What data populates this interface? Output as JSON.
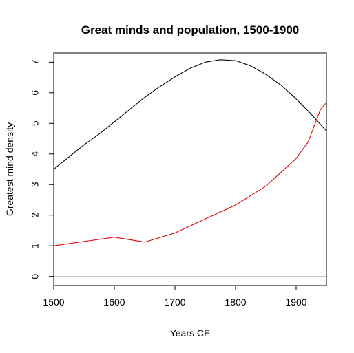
{
  "chart_data": {
    "type": "line",
    "title": "Great minds and population, 1500-1900",
    "xlabel": "Years CE",
    "ylabel": "Greatest mind density",
    "xlim": [
      1500,
      1950
    ],
    "ylim": [
      -0.3,
      7.3
    ],
    "x_ticks": [
      1500,
      1600,
      1700,
      1800,
      1900
    ],
    "y_ticks": [
      0,
      1,
      2,
      3,
      4,
      5,
      6,
      7
    ],
    "reference_line_y": 0,
    "reference_line_color": "#bebebe",
    "grid": false,
    "legend": "none",
    "series": [
      {
        "color": "#000000",
        "x": [
          1500,
          1525,
          1550,
          1575,
          1600,
          1625,
          1650,
          1675,
          1700,
          1725,
          1750,
          1775,
          1800,
          1825,
          1850,
          1875,
          1900,
          1925,
          1950
        ],
        "y": [
          3.5,
          3.9,
          4.3,
          4.65,
          5.05,
          5.45,
          5.85,
          6.2,
          6.52,
          6.8,
          7.0,
          7.08,
          7.05,
          6.88,
          6.6,
          6.25,
          5.8,
          5.3,
          4.75
        ]
      },
      {
        "color": "#df0000",
        "x": [
          1500,
          1600,
          1650,
          1700,
          1800,
          1850,
          1900,
          1920,
          1940,
          1950
        ],
        "y": [
          1.0,
          1.28,
          1.12,
          1.42,
          2.33,
          2.95,
          3.85,
          4.4,
          5.45,
          5.68
        ]
      }
    ]
  }
}
